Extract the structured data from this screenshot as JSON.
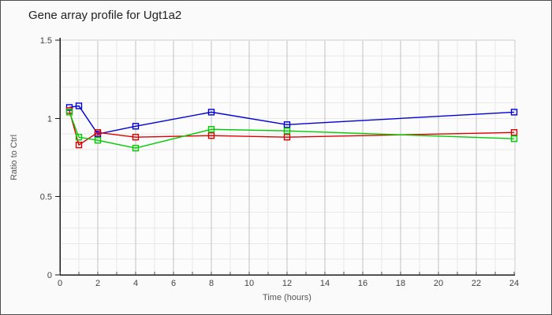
{
  "colors": {
    "page_bg": "#fafafa",
    "frame_border": "#4e4e4e",
    "plot_bg": "#fcfcfc",
    "plot_border": "#cccccc",
    "axis": "#1a1a1a",
    "grid_minor": "#e9e9e9",
    "grid_major": "#c2c2c2",
    "tick": "#555555",
    "tick_label": "#444444",
    "axis_title": "#555555",
    "title": "#222222",
    "series_blue": "#0000dd",
    "series_red": "#dd0000",
    "series_green": "#00cc00"
  },
  "chart_data": {
    "type": "line",
    "title": "Gene array profile for Ugt1a2",
    "xlabel": "Time (hours)",
    "ylabel": "Ratio to Ctrl",
    "xlim": [
      0,
      24
    ],
    "ylim": [
      0,
      1.5
    ],
    "x_major_ticks": [
      0,
      2,
      4,
      6,
      8,
      10,
      12,
      14,
      16,
      18,
      20,
      22,
      24
    ],
    "x_minor_tick_step": 1,
    "y_ticks": [
      0,
      0.5,
      1,
      1.5
    ],
    "y_tick_labels": [
      "0",
      "0.5",
      "1",
      "1.5"
    ],
    "y_minor_grid_step": 0.1,
    "grid": true,
    "legend": "none",
    "marker": "open-square",
    "x": [
      0.5,
      1,
      2,
      4,
      8,
      12,
      24
    ],
    "series": [
      {
        "name": "blue-series",
        "color": "#0000dd",
        "values": [
          1.07,
          1.08,
          0.9,
          0.95,
          1.04,
          0.96,
          1.04
        ]
      },
      {
        "name": "red-series",
        "color": "#dd0000",
        "values": [
          1.05,
          0.83,
          0.91,
          0.88,
          0.89,
          0.88,
          0.91
        ]
      },
      {
        "name": "green-series",
        "color": "#00cc00",
        "values": [
          1.04,
          0.88,
          0.86,
          0.81,
          0.93,
          0.92,
          0.87
        ]
      }
    ]
  }
}
